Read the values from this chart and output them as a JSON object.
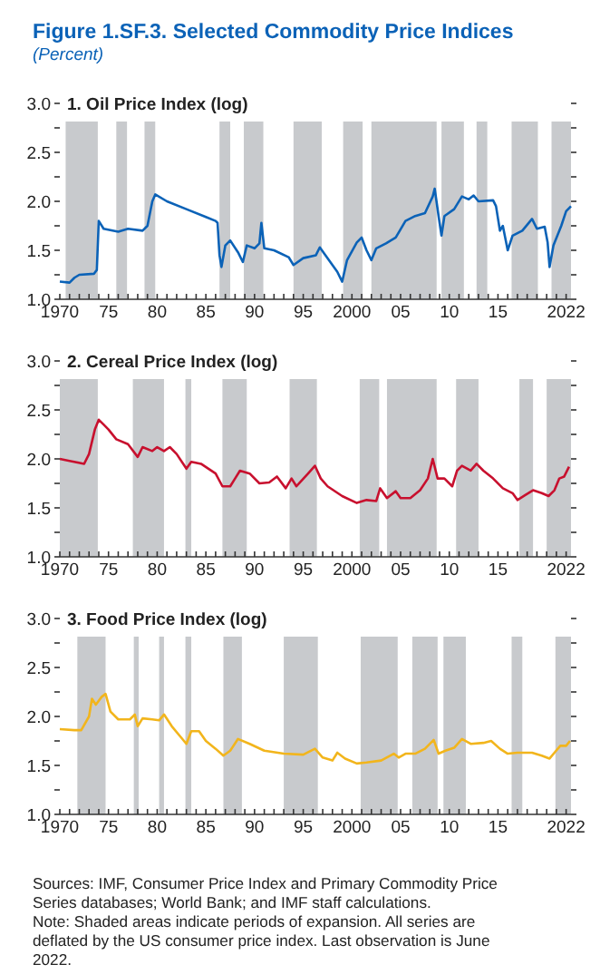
{
  "chart_data": [
    {
      "type": "line",
      "title": "Figure 1.SF.3.  Selected Commodity Price Indices",
      "subtitle": "(Percent)",
      "xlabel": "1. Oil Price Index (log)",
      "x": [
        1970,
        1971,
        1971.5,
        1972,
        1973.5,
        1973.8,
        1974,
        1974.5,
        1976,
        1977,
        1978.5,
        1979,
        1979.5,
        1979.8,
        1981,
        1983,
        1985,
        1986,
        1986.2,
        1986.4,
        1986.6,
        1987,
        1987.5,
        1988.3,
        1988.8,
        1989.2,
        1990,
        1990.5,
        1990.7,
        1991,
        1992,
        1993.5,
        1994,
        1995,
        1996.3,
        1996.7,
        1997.5,
        1998.5,
        1999,
        1999.5,
        2000.5,
        2001,
        2001.5,
        2002,
        2002.5,
        2003.5,
        2004.5,
        2005.5,
        2006.5,
        2007.5,
        2008.3,
        2008.5,
        2008.9,
        2009.2,
        2009.5,
        2010.5,
        2011.3,
        2012,
        2012.5,
        2013,
        2014.5,
        2014.8,
        2015.2,
        2015.5,
        2016,
        2016.5,
        2017.5,
        2018.5,
        2019,
        2019.8,
        2020.1,
        2020.3,
        2020.7,
        2021.5,
        2022,
        2022.5
      ],
      "series": [
        {
          "color": "#0b62b7",
          "values": [
            1.18,
            1.17,
            1.22,
            1.25,
            1.26,
            1.3,
            1.8,
            1.72,
            1.69,
            1.72,
            1.7,
            1.75,
            2.0,
            2.07,
            2.0,
            1.92,
            1.84,
            1.8,
            1.78,
            1.45,
            1.33,
            1.55,
            1.6,
            1.48,
            1.38,
            1.55,
            1.52,
            1.57,
            1.78,
            1.52,
            1.5,
            1.43,
            1.35,
            1.42,
            1.45,
            1.53,
            1.42,
            1.28,
            1.18,
            1.4,
            1.58,
            1.63,
            1.5,
            1.4,
            1.52,
            1.57,
            1.63,
            1.8,
            1.85,
            1.88,
            2.05,
            2.13,
            1.85,
            1.65,
            1.85,
            1.92,
            2.05,
            2.02,
            2.06,
            2.0,
            2.01,
            1.95,
            1.7,
            1.75,
            1.5,
            1.65,
            1.7,
            1.82,
            1.72,
            1.74,
            1.58,
            1.33,
            1.55,
            1.75,
            1.9,
            1.95
          ]
        }
      ],
      "bands": [
        {
          "axis": "x",
          "from": 1970.6,
          "to": 1973.9,
          "color": "#c8cacd"
        },
        {
          "axis": "x",
          "from": 1975.8,
          "to": 1976.9,
          "color": "#c8cacd"
        },
        {
          "axis": "x",
          "from": 1978.7,
          "to": 1979.8,
          "color": "#c8cacd"
        },
        {
          "axis": "x",
          "from": 1986.4,
          "to": 1987.5,
          "color": "#c8cacd"
        },
        {
          "axis": "x",
          "from": 1988.9,
          "to": 1990.9,
          "color": "#c8cacd"
        },
        {
          "axis": "x",
          "from": 1994,
          "to": 1996.9,
          "color": "#c8cacd"
        },
        {
          "axis": "x",
          "from": 1999.1,
          "to": 2001.1,
          "color": "#c8cacd"
        },
        {
          "axis": "x",
          "from": 2002,
          "to": 2008.7,
          "color": "#c8cacd"
        },
        {
          "axis": "x",
          "from": 2009.2,
          "to": 2011.5,
          "color": "#c8cacd"
        },
        {
          "axis": "x",
          "from": 2012.8,
          "to": 2013.9,
          "color": "#c8cacd"
        },
        {
          "axis": "x",
          "from": 2016.4,
          "to": 2019.1,
          "color": "#c8cacd"
        },
        {
          "axis": "x",
          "from": 2020.5,
          "to": 2022.5,
          "color": "#c8cacd"
        }
      ],
      "xlim": [
        1970,
        2022.5
      ],
      "xticks": [
        {
          "value": 1970,
          "label": "1970"
        },
        {
          "value": 1971,
          "label": null
        },
        {
          "value": 1972,
          "label": null
        },
        {
          "value": 1973,
          "label": null
        },
        {
          "value": 1974,
          "label": null
        },
        {
          "value": 1975,
          "label": "75"
        },
        {
          "value": 1976,
          "label": null
        },
        {
          "value": 1977,
          "label": null
        },
        {
          "value": 1978,
          "label": null
        },
        {
          "value": 1979,
          "label": null
        },
        {
          "value": 1980,
          "label": "80"
        },
        {
          "value": 1981,
          "label": null
        },
        {
          "value": 1982,
          "label": null
        },
        {
          "value": 1983,
          "label": null
        },
        {
          "value": 1984,
          "label": null
        },
        {
          "value": 1985,
          "label": "85"
        },
        {
          "value": 1986,
          "label": null
        },
        {
          "value": 1987,
          "label": null
        },
        {
          "value": 1988,
          "label": null
        },
        {
          "value": 1989,
          "label": null
        },
        {
          "value": 1990,
          "label": "90"
        },
        {
          "value": 1991,
          "label": null
        },
        {
          "value": 1992,
          "label": null
        },
        {
          "value": 1993,
          "label": null
        },
        {
          "value": 1994,
          "label": null
        },
        {
          "value": 1995,
          "label": "95"
        },
        {
          "value": 1996,
          "label": null
        },
        {
          "value": 1997,
          "label": null
        },
        {
          "value": 1998,
          "label": null
        },
        {
          "value": 1999,
          "label": null
        },
        {
          "value": 2000,
          "label": "2000"
        },
        {
          "value": 2001,
          "label": null
        },
        {
          "value": 2002,
          "label": null
        },
        {
          "value": 2003,
          "label": null
        },
        {
          "value": 2004,
          "label": null
        },
        {
          "value": 2005,
          "label": "05"
        },
        {
          "value": 2006,
          "label": null
        },
        {
          "value": 2007,
          "label": null
        },
        {
          "value": 2008,
          "label": null
        },
        {
          "value": 2009,
          "label": null
        },
        {
          "value": 2010,
          "label": "10"
        },
        {
          "value": 2011,
          "label": null
        },
        {
          "value": 2012,
          "label": null
        },
        {
          "value": 2013,
          "label": null
        },
        {
          "value": 2014,
          "label": null
        },
        {
          "value": 2015,
          "label": "15"
        },
        {
          "value": 2016,
          "label": null
        },
        {
          "value": 2017,
          "label": null
        },
        {
          "value": 2018,
          "label": null
        },
        {
          "value": 2019,
          "label": null
        },
        {
          "value": 2020,
          "label": null
        },
        {
          "value": 2021,
          "label": null
        },
        {
          "value": 2022,
          "label": "2022"
        }
      ],
      "ylim": [
        1,
        3
      ],
      "yticks": [
        {
          "value": 1,
          "label": "1.0"
        },
        {
          "value": 1.25,
          "label": null
        },
        {
          "value": 1.5,
          "label": "1.5"
        },
        {
          "value": 1.75,
          "label": null
        },
        {
          "value": 2,
          "label": "2.0"
        },
        {
          "value": 2.25,
          "label": null
        },
        {
          "value": 2.5,
          "label": "2.5"
        },
        {
          "value": 2.75,
          "label": null
        },
        {
          "value": 3,
          "label": "3.0"
        }
      ]
    },
    {
      "type": "line",
      "xlabel": "2. Cereal Price Index (log)",
      "x": [
        1970,
        1971,
        1972.5,
        1973,
        1973.6,
        1974,
        1974.5,
        1975,
        1975.8,
        1977,
        1978,
        1978.5,
        1979.5,
        1980,
        1980.7,
        1981.3,
        1982,
        1983,
        1983.5,
        1984.5,
        1986,
        1986.7,
        1987.5,
        1988,
        1988.5,
        1989.5,
        1990.5,
        1991.5,
        1992.3,
        1993.2,
        1993.8,
        1994.3,
        1995.5,
        1996.2,
        1996.8,
        1997.5,
        1999,
        2000.5,
        2001.5,
        2002.5,
        2002.9,
        2003.6,
        2004.5,
        2005,
        2006,
        2007,
        2007.8,
        2008.3,
        2008.8,
        2009.5,
        2010.3,
        2010.8,
        2011.3,
        2012.2,
        2012.8,
        2013.5,
        2014.5,
        2015.5,
        2016.5,
        2017,
        2017.8,
        2018.6,
        2019.5,
        2020.2,
        2020.8,
        2021.3,
        2021.8,
        2022.3
      ],
      "series": [
        {
          "color": "#c8102e",
          "values": [
            2.0,
            1.98,
            1.95,
            2.05,
            2.3,
            2.4,
            2.35,
            2.3,
            2.2,
            2.15,
            2.02,
            2.12,
            2.08,
            2.12,
            2.08,
            2.12,
            2.05,
            1.9,
            1.97,
            1.95,
            1.85,
            1.72,
            1.72,
            1.8,
            1.88,
            1.85,
            1.75,
            1.76,
            1.82,
            1.7,
            1.8,
            1.72,
            1.85,
            1.93,
            1.8,
            1.72,
            1.62,
            1.55,
            1.58,
            1.57,
            1.7,
            1.6,
            1.67,
            1.6,
            1.6,
            1.68,
            1.8,
            2.0,
            1.8,
            1.8,
            1.72,
            1.88,
            1.93,
            1.88,
            1.95,
            1.88,
            1.8,
            1.7,
            1.65,
            1.58,
            1.63,
            1.68,
            1.65,
            1.62,
            1.68,
            1.8,
            1.82,
            1.92
          ]
        }
      ],
      "bands": [
        {
          "axis": "x",
          "from": 1970,
          "to": 1973.9,
          "color": "#c8cacd"
        },
        {
          "axis": "x",
          "from": 1977.5,
          "to": 1980.7,
          "color": "#c8cacd"
        },
        {
          "axis": "x",
          "from": 1982.9,
          "to": 1983.5,
          "color": "#c8cacd"
        },
        {
          "axis": "x",
          "from": 1986.7,
          "to": 1989.2,
          "color": "#c8cacd"
        },
        {
          "axis": "x",
          "from": 1993.6,
          "to": 1996.4,
          "color": "#c8cacd"
        },
        {
          "axis": "x",
          "from": 2000.8,
          "to": 2002.8,
          "color": "#c8cacd"
        },
        {
          "axis": "x",
          "from": 2003.6,
          "to": 2008.7,
          "color": "#c8cacd"
        },
        {
          "axis": "x",
          "from": 2010.7,
          "to": 2013,
          "color": "#c8cacd"
        },
        {
          "axis": "x",
          "from": 2017.2,
          "to": 2018.6,
          "color": "#c8cacd"
        },
        {
          "axis": "x",
          "from": 2020,
          "to": 2022.5,
          "color": "#c8cacd"
        }
      ],
      "xlim": [
        1970,
        2022.5
      ],
      "xticks": [
        {
          "value": 1970,
          "label": "1970"
        },
        {
          "value": 1971,
          "label": null
        },
        {
          "value": 1972,
          "label": null
        },
        {
          "value": 1973,
          "label": null
        },
        {
          "value": 1974,
          "label": null
        },
        {
          "value": 1975,
          "label": "75"
        },
        {
          "value": 1976,
          "label": null
        },
        {
          "value": 1977,
          "label": null
        },
        {
          "value": 1978,
          "label": null
        },
        {
          "value": 1979,
          "label": null
        },
        {
          "value": 1980,
          "label": "80"
        },
        {
          "value": 1981,
          "label": null
        },
        {
          "value": 1982,
          "label": null
        },
        {
          "value": 1983,
          "label": null
        },
        {
          "value": 1984,
          "label": null
        },
        {
          "value": 1985,
          "label": "85"
        },
        {
          "value": 1986,
          "label": null
        },
        {
          "value": 1987,
          "label": null
        },
        {
          "value": 1988,
          "label": null
        },
        {
          "value": 1989,
          "label": null
        },
        {
          "value": 1990,
          "label": "90"
        },
        {
          "value": 1991,
          "label": null
        },
        {
          "value": 1992,
          "label": null
        },
        {
          "value": 1993,
          "label": null
        },
        {
          "value": 1994,
          "label": null
        },
        {
          "value": 1995,
          "label": "95"
        },
        {
          "value": 1996,
          "label": null
        },
        {
          "value": 1997,
          "label": null
        },
        {
          "value": 1998,
          "label": null
        },
        {
          "value": 1999,
          "label": null
        },
        {
          "value": 2000,
          "label": "2000"
        },
        {
          "value": 2001,
          "label": null
        },
        {
          "value": 2002,
          "label": null
        },
        {
          "value": 2003,
          "label": null
        },
        {
          "value": 2004,
          "label": null
        },
        {
          "value": 2005,
          "label": "05"
        },
        {
          "value": 2006,
          "label": null
        },
        {
          "value": 2007,
          "label": null
        },
        {
          "value": 2008,
          "label": null
        },
        {
          "value": 2009,
          "label": null
        },
        {
          "value": 2010,
          "label": "10"
        },
        {
          "value": 2011,
          "label": null
        },
        {
          "value": 2012,
          "label": null
        },
        {
          "value": 2013,
          "label": null
        },
        {
          "value": 2014,
          "label": null
        },
        {
          "value": 2015,
          "label": "15"
        },
        {
          "value": 2016,
          "label": null
        },
        {
          "value": 2017,
          "label": null
        },
        {
          "value": 2018,
          "label": null
        },
        {
          "value": 2019,
          "label": null
        },
        {
          "value": 2020,
          "label": null
        },
        {
          "value": 2021,
          "label": null
        },
        {
          "value": 2022,
          "label": "2022"
        }
      ],
      "ylim": [
        1,
        3
      ],
      "yticks": [
        {
          "value": 1,
          "label": "1.0"
        },
        {
          "value": 1.25,
          "label": null
        },
        {
          "value": 1.5,
          "label": "1.5"
        },
        {
          "value": 1.75,
          "label": null
        },
        {
          "value": 2,
          "label": "2.0"
        },
        {
          "value": 2.25,
          "label": null
        },
        {
          "value": 2.5,
          "label": "2.5"
        },
        {
          "value": 2.75,
          "label": null
        },
        {
          "value": 3,
          "label": "3.0"
        }
      ]
    },
    {
      "type": "line",
      "xlabel": "3. Food Price Index (log)",
      "x": [
        1970,
        1971.5,
        1972.2,
        1973,
        1973.3,
        1973.7,
        1974.3,
        1974.7,
        1975.2,
        1976,
        1977.2,
        1977.7,
        1978,
        1978.5,
        1979.5,
        1980.2,
        1980.7,
        1981.5,
        1982.5,
        1983,
        1983.5,
        1984.3,
        1985,
        1986,
        1986.8,
        1987.5,
        1988.3,
        1989.5,
        1991,
        1993,
        1995,
        1996.2,
        1997,
        1998,
        1998.5,
        1999.3,
        2000.5,
        2001.5,
        2003,
        2004.3,
        2004.8,
        2005.5,
        2006.5,
        2007.5,
        2008.4,
        2008.9,
        2009.6,
        2010.5,
        2011.3,
        2012.2,
        2013.5,
        2014.3,
        2015.2,
        2016,
        2017,
        2018.5,
        2019.5,
        2020.3,
        2020.8,
        2021.4,
        2022,
        2022.4
      ],
      "series": [
        {
          "color": "#f2b51c",
          "values": [
            1.87,
            1.86,
            1.86,
            2.0,
            2.18,
            2.12,
            2.2,
            2.23,
            2.05,
            1.97,
            1.97,
            2.02,
            1.9,
            1.98,
            1.97,
            1.96,
            2.02,
            1.9,
            1.78,
            1.72,
            1.85,
            1.85,
            1.75,
            1.67,
            1.6,
            1.65,
            1.77,
            1.72,
            1.65,
            1.62,
            1.61,
            1.67,
            1.58,
            1.55,
            1.63,
            1.57,
            1.52,
            1.53,
            1.55,
            1.62,
            1.58,
            1.62,
            1.62,
            1.67,
            1.76,
            1.62,
            1.65,
            1.68,
            1.77,
            1.72,
            1.73,
            1.75,
            1.67,
            1.62,
            1.63,
            1.63,
            1.6,
            1.57,
            1.63,
            1.7,
            1.7,
            1.75
          ]
        }
      ],
      "bands": [
        {
          "axis": "x",
          "from": 1971.8,
          "to": 1974.7,
          "color": "#c8cacd"
        },
        {
          "axis": "x",
          "from": 1977.6,
          "to": 1978.1,
          "color": "#c8cacd"
        },
        {
          "axis": "x",
          "from": 1980.2,
          "to": 1980.7,
          "color": "#c8cacd"
        },
        {
          "axis": "x",
          "from": 1982.9,
          "to": 1983.5,
          "color": "#c8cacd"
        },
        {
          "axis": "x",
          "from": 1986.8,
          "to": 1988.7,
          "color": "#c8cacd"
        },
        {
          "axis": "x",
          "from": 1993,
          "to": 1996.5,
          "color": "#c8cacd"
        },
        {
          "axis": "x",
          "from": 2000.9,
          "to": 2004.7,
          "color": "#c8cacd"
        },
        {
          "axis": "x",
          "from": 2006.2,
          "to": 2008.8,
          "color": "#c8cacd"
        },
        {
          "axis": "x",
          "from": 2009.4,
          "to": 2011.7,
          "color": "#c8cacd"
        },
        {
          "axis": "x",
          "from": 2016.4,
          "to": 2017.5,
          "color": "#c8cacd"
        },
        {
          "axis": "x",
          "from": 2020.9,
          "to": 2022.5,
          "color": "#c8cacd"
        }
      ],
      "xlim": [
        1970,
        2022.5
      ],
      "xticks": [
        {
          "value": 1970,
          "label": "1970"
        },
        {
          "value": 1971,
          "label": null
        },
        {
          "value": 1972,
          "label": null
        },
        {
          "value": 1973,
          "label": null
        },
        {
          "value": 1974,
          "label": null
        },
        {
          "value": 1975,
          "label": "75"
        },
        {
          "value": 1976,
          "label": null
        },
        {
          "value": 1977,
          "label": null
        },
        {
          "value": 1978,
          "label": null
        },
        {
          "value": 1979,
          "label": null
        },
        {
          "value": 1980,
          "label": "80"
        },
        {
          "value": 1981,
          "label": null
        },
        {
          "value": 1982,
          "label": null
        },
        {
          "value": 1983,
          "label": null
        },
        {
          "value": 1984,
          "label": null
        },
        {
          "value": 1985,
          "label": "85"
        },
        {
          "value": 1986,
          "label": null
        },
        {
          "value": 1987,
          "label": null
        },
        {
          "value": 1988,
          "label": null
        },
        {
          "value": 1989,
          "label": null
        },
        {
          "value": 1990,
          "label": "90"
        },
        {
          "value": 1991,
          "label": null
        },
        {
          "value": 1992,
          "label": null
        },
        {
          "value": 1993,
          "label": null
        },
        {
          "value": 1994,
          "label": null
        },
        {
          "value": 1995,
          "label": "95"
        },
        {
          "value": 1996,
          "label": null
        },
        {
          "value": 1997,
          "label": null
        },
        {
          "value": 1998,
          "label": null
        },
        {
          "value": 1999,
          "label": null
        },
        {
          "value": 2000,
          "label": "2000"
        },
        {
          "value": 2001,
          "label": null
        },
        {
          "value": 2002,
          "label": null
        },
        {
          "value": 2003,
          "label": null
        },
        {
          "value": 2004,
          "label": null
        },
        {
          "value": 2005,
          "label": "05"
        },
        {
          "value": 2006,
          "label": null
        },
        {
          "value": 2007,
          "label": null
        },
        {
          "value": 2008,
          "label": null
        },
        {
          "value": 2009,
          "label": null
        },
        {
          "value": 2010,
          "label": "10"
        },
        {
          "value": 2011,
          "label": null
        },
        {
          "value": 2012,
          "label": null
        },
        {
          "value": 2013,
          "label": null
        },
        {
          "value": 2014,
          "label": null
        },
        {
          "value": 2015,
          "label": "15"
        },
        {
          "value": 2016,
          "label": null
        },
        {
          "value": 2017,
          "label": null
        },
        {
          "value": 2018,
          "label": null
        },
        {
          "value": 2019,
          "label": null
        },
        {
          "value": 2020,
          "label": null
        },
        {
          "value": 2021,
          "label": null
        },
        {
          "value": 2022,
          "label": "2022"
        }
      ],
      "ylim": [
        1,
        3
      ],
      "yticks": [
        {
          "value": 1,
          "label": "1.0"
        },
        {
          "value": 1.25,
          "label": null
        },
        {
          "value": 1.5,
          "label": "1.5"
        },
        {
          "value": 1.75,
          "label": null
        },
        {
          "value": 2,
          "label": "2.0"
        },
        {
          "value": 2.25,
          "label": null
        },
        {
          "value": 2.5,
          "label": "2.5"
        },
        {
          "value": 2.75,
          "label": null
        },
        {
          "value": 3,
          "label": "3.0"
        }
      ],
      "annotations": [
        "Sources: IMF, Consumer Price Index and Primary Commodity Price Series databases; World Bank; and IMF staff calculations.",
        "Note: Shaded areas indicate periods of expansion. All series are deflated by the US consumer price index. Last observation is June 2022."
      ]
    }
  ]
}
